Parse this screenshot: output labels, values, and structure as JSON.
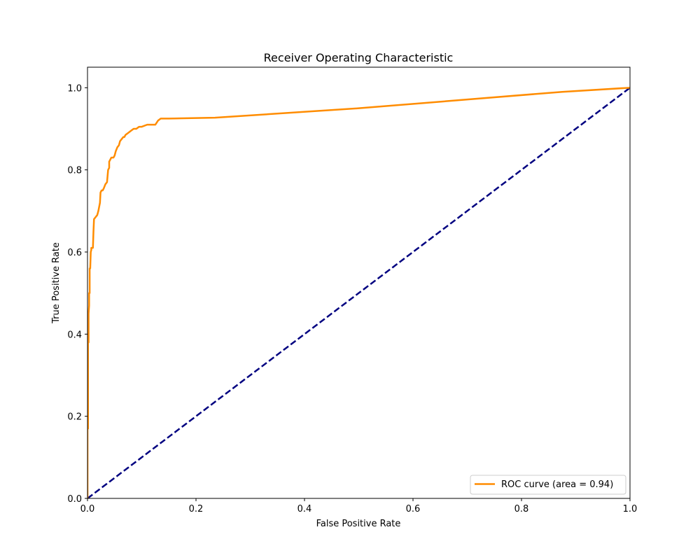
{
  "chart_data": {
    "type": "line",
    "title": "Receiver Operating Characteristic",
    "xlabel": "False Positive Rate",
    "ylabel": "True Positive Rate",
    "xlim": [
      0.0,
      1.0
    ],
    "ylim": [
      0.0,
      1.05
    ],
    "x_ticks": [
      "0.0",
      "0.2",
      "0.4",
      "0.6",
      "0.8",
      "1.0"
    ],
    "y_ticks": [
      "0.0",
      "0.2",
      "0.4",
      "0.6",
      "0.8",
      "1.0"
    ],
    "grid": false,
    "legend_position": "lower-right",
    "series": [
      {
        "name": "ROC curve (area = 0.94)",
        "color": "#ff8c00",
        "line_style": "solid",
        "x": [
          0.0,
          0.0,
          0.001,
          0.001,
          0.002,
          0.002,
          0.003,
          0.003,
          0.004,
          0.004,
          0.005,
          0.006,
          0.007,
          0.007,
          0.01,
          0.011,
          0.012,
          0.015,
          0.018,
          0.02,
          0.023,
          0.024,
          0.026,
          0.028,
          0.03,
          0.033,
          0.036,
          0.038,
          0.04,
          0.04,
          0.042,
          0.044,
          0.046,
          0.048,
          0.05,
          0.052,
          0.055,
          0.058,
          0.06,
          0.063,
          0.066,
          0.068,
          0.07,
          0.075,
          0.08,
          0.085,
          0.09,
          0.095,
          0.1,
          0.11,
          0.115,
          0.125,
          0.13,
          0.135,
          0.15,
          0.235,
          0.5,
          0.875,
          1.0
        ],
        "y": [
          0.0,
          0.17,
          0.17,
          0.38,
          0.38,
          0.45,
          0.47,
          0.5,
          0.5,
          0.56,
          0.56,
          0.6,
          0.605,
          0.61,
          0.61,
          0.65,
          0.68,
          0.685,
          0.69,
          0.7,
          0.72,
          0.745,
          0.75,
          0.75,
          0.755,
          0.765,
          0.77,
          0.8,
          0.805,
          0.82,
          0.825,
          0.83,
          0.83,
          0.83,
          0.835,
          0.845,
          0.855,
          0.86,
          0.87,
          0.875,
          0.88,
          0.88,
          0.885,
          0.89,
          0.895,
          0.9,
          0.9,
          0.905,
          0.905,
          0.91,
          0.91,
          0.91,
          0.92,
          0.925,
          0.925,
          0.927,
          0.95,
          0.99,
          1.0
        ]
      },
      {
        "name": "",
        "color": "#000080",
        "line_style": "dashed",
        "x": [
          0.0,
          1.0
        ],
        "y": [
          0.0,
          1.0
        ]
      }
    ]
  }
}
